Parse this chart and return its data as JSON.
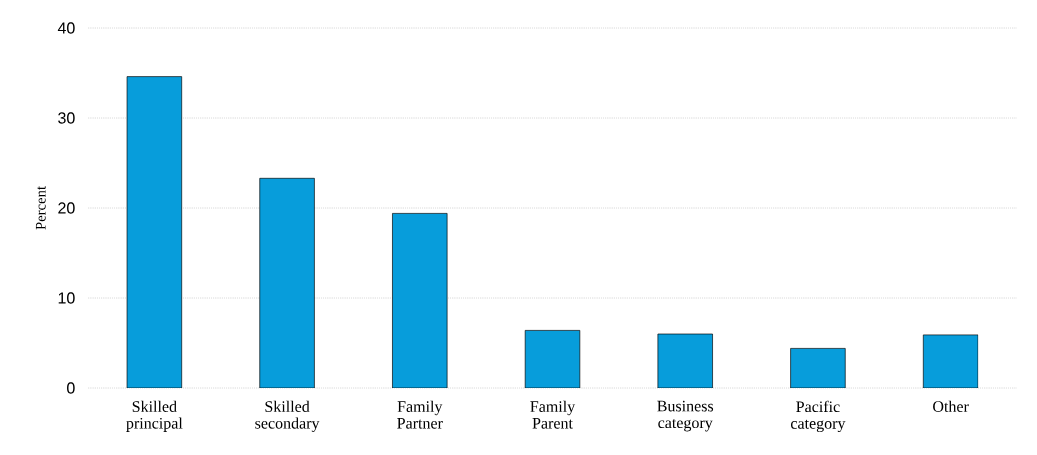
{
  "chart_data": {
    "type": "bar",
    "ylabel": "Percent",
    "categories": [
      "Skilled principal",
      "Skilled secondary",
      "Family Partner",
      "Family Parent",
      "Business category",
      "Pacific category",
      "Other"
    ],
    "values": [
      34.6,
      23.3,
      19.4,
      6.4,
      6.0,
      4.4,
      5.9
    ],
    "color": "#079ddb",
    "ylim": [
      0,
      40
    ],
    "yticks": [
      0,
      10,
      20,
      30,
      40
    ],
    "grid": "y"
  }
}
